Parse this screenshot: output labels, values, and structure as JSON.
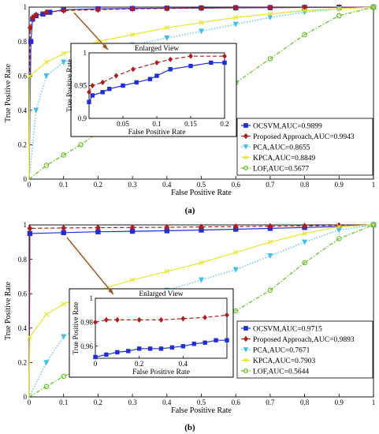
{
  "figure": {
    "label_a": "(a)",
    "label_b": "(b)"
  },
  "chart_data": [
    {
      "type": "line",
      "panel": "(a)",
      "xlabel": "False Positive Rate",
      "ylabel": "True Positive Rate",
      "xlim": [
        0,
        1
      ],
      "ylim": [
        0,
        1
      ],
      "xticks": [
        "0",
        "0.1",
        "0.2",
        "0.3",
        "0.4",
        "0.5",
        "0.6",
        "0.7",
        "0.8",
        "0.9",
        "1"
      ],
      "yticks": [
        "0",
        "0.2",
        "0.4",
        "0.6",
        "0.8",
        "1"
      ],
      "legend_position": "bottom-right",
      "series": [
        {
          "name": "OCSVM,AUC=0.9899",
          "color": "#1f2fd6",
          "marker": "square",
          "dash": "solid",
          "x": [
            0,
            0.005,
            0.01,
            0.02,
            0.04,
            0.06,
            0.1,
            0.2,
            0.3,
            0.4,
            0.5,
            0.6,
            0.7,
            0.8,
            0.9,
            1
          ],
          "y": [
            0,
            0.8,
            0.93,
            0.95,
            0.96,
            0.97,
            0.985,
            0.99,
            0.992,
            0.994,
            0.995,
            0.996,
            0.997,
            0.998,
            0.999,
            1
          ]
        },
        {
          "name": "Proposed Approach,AUC=0.9943",
          "color": "#b01c1c",
          "marker": "diamond",
          "dash": "dashed",
          "x": [
            0,
            0.003,
            0.01,
            0.02,
            0.05,
            0.1,
            0.2,
            0.3,
            0.4,
            0.5,
            0.6,
            0.7,
            0.8,
            0.9,
            1
          ],
          "y": [
            0,
            0.88,
            0.94,
            0.955,
            0.97,
            0.98,
            0.985,
            0.99,
            0.992,
            0.994,
            0.996,
            0.997,
            0.998,
            0.999,
            1
          ]
        },
        {
          "name": "PCA,AUC=0.8655",
          "color": "#3fc0ec",
          "marker": "triangle-down",
          "dash": "dotted",
          "x": [
            0,
            0.02,
            0.05,
            0.1,
            0.2,
            0.3,
            0.4,
            0.5,
            0.6,
            0.7,
            0.8,
            0.9,
            1
          ],
          "y": [
            0,
            0.4,
            0.6,
            0.68,
            0.74,
            0.78,
            0.82,
            0.86,
            0.9,
            0.94,
            0.97,
            0.99,
            1
          ]
        },
        {
          "name": "KPCA,AUC=0.8849",
          "color": "#e6e62a",
          "marker": "x",
          "dash": "solid",
          "x": [
            0,
            0.002,
            0.05,
            0.1,
            0.2,
            0.3,
            0.4,
            0.5,
            0.6,
            0.7,
            0.8,
            0.9,
            1
          ],
          "y": [
            0,
            0.6,
            0.68,
            0.73,
            0.8,
            0.84,
            0.88,
            0.91,
            0.94,
            0.96,
            0.98,
            0.99,
            1
          ]
        },
        {
          "name": "LOF,AUC=0.5677",
          "color": "#5ec21c",
          "marker": "circle",
          "dash": "dashdot",
          "x": [
            0,
            0.05,
            0.1,
            0.15,
            0.2,
            0.3,
            0.4,
            0.5,
            0.55,
            0.6,
            0.7,
            0.8,
            0.9,
            1
          ],
          "y": [
            0,
            0.08,
            0.14,
            0.2,
            0.27,
            0.33,
            0.38,
            0.43,
            0.48,
            0.56,
            0.7,
            0.84,
            0.95,
            1
          ]
        }
      ],
      "inset": {
        "title": "Enlarged View",
        "xlabel": "False Positive Rate",
        "ylabel": "True Positive Rate",
        "xlim": [
          0,
          0.2
        ],
        "ylim": [
          0.9,
          1
        ],
        "xticks": [
          "0.05",
          "0.1",
          "0.15",
          "0.2"
        ],
        "yticks": [
          "0.9",
          "0.95",
          "1"
        ],
        "series": [
          {
            "name": "OCSVM,AUC=0.9899",
            "x": [
              0,
              0.005,
              0.02,
              0.03,
              0.05,
              0.07,
              0.09,
              0.1,
              0.12,
              0.15,
              0.18,
              0.2
            ],
            "y": [
              0.925,
              0.935,
              0.94,
              0.945,
              0.95,
              0.955,
              0.96,
              0.965,
              0.975,
              0.98,
              0.985,
              0.985
            ]
          },
          {
            "name": "Proposed Approach,AUC=0.9943",
            "x": [
              0,
              0.005,
              0.02,
              0.04,
              0.065,
              0.1,
              0.12,
              0.15,
              0.2
            ],
            "y": [
              0.94,
              0.95,
              0.955,
              0.965,
              0.975,
              0.985,
              0.99,
              0.995,
              0.995
            ]
          }
        ]
      }
    },
    {
      "type": "line",
      "panel": "(b)",
      "xlabel": "False Positive Rate",
      "ylabel": "True Positive Rate",
      "xlim": [
        0,
        1
      ],
      "ylim": [
        0,
        1
      ],
      "xticks": [
        "0",
        "0.1",
        "0.2",
        "0.3",
        "0.4",
        "0.5",
        "0.6",
        "0.7",
        "0.8",
        "0.9",
        "1"
      ],
      "yticks": [
        "0",
        "0.2",
        "0.4",
        "0.6",
        "0.8",
        "1"
      ],
      "legend_position": "bottom-right",
      "series": [
        {
          "name": "OCSVM,AUC=0.9715",
          "color": "#1f2fd6",
          "marker": "square",
          "dash": "solid",
          "x": [
            0,
            0.002,
            0.1,
            0.2,
            0.3,
            0.4,
            0.5,
            0.6,
            0.7,
            0.8,
            0.9,
            1
          ],
          "y": [
            0,
            0.95,
            0.955,
            0.96,
            0.963,
            0.966,
            0.97,
            0.975,
            0.98,
            0.985,
            0.99,
            1
          ]
        },
        {
          "name": "Proposed Approach,AUC=0.9893",
          "color": "#b01c1c",
          "marker": "diamond",
          "dash": "dashed",
          "x": [
            0,
            0.002,
            0.1,
            0.2,
            0.3,
            0.4,
            0.5,
            0.6,
            0.7,
            0.8,
            0.9,
            1
          ],
          "y": [
            0,
            0.98,
            0.982,
            0.984,
            0.985,
            0.986,
            0.988,
            0.99,
            0.992,
            0.994,
            0.997,
            1
          ]
        },
        {
          "name": "PCA,AUC=0.7671",
          "color": "#3fc0ec",
          "marker": "triangle-down",
          "dash": "dotted",
          "x": [
            0,
            0.05,
            0.1,
            0.2,
            0.3,
            0.4,
            0.5,
            0.6,
            0.7,
            0.8,
            0.9,
            1
          ],
          "y": [
            0,
            0.2,
            0.35,
            0.48,
            0.56,
            0.62,
            0.68,
            0.74,
            0.82,
            0.9,
            0.97,
            1
          ]
        },
        {
          "name": "KPCA,AUC=0.7903",
          "color": "#e6e62a",
          "marker": "x",
          "dash": "solid",
          "x": [
            0,
            0.002,
            0.05,
            0.1,
            0.2,
            0.3,
            0.4,
            0.5,
            0.6,
            0.7,
            0.8,
            0.9,
            1
          ],
          "y": [
            0,
            0.35,
            0.48,
            0.54,
            0.62,
            0.68,
            0.73,
            0.78,
            0.84,
            0.9,
            0.95,
            0.99,
            1
          ]
        },
        {
          "name": "LOF,AUC=0.5644",
          "color": "#5ec21c",
          "marker": "circle",
          "dash": "dashdot",
          "x": [
            0,
            0.05,
            0.1,
            0.2,
            0.3,
            0.4,
            0.5,
            0.6,
            0.7,
            0.8,
            0.9,
            1
          ],
          "y": [
            0,
            0.06,
            0.12,
            0.2,
            0.26,
            0.34,
            0.4,
            0.5,
            0.62,
            0.78,
            0.92,
            1
          ]
        }
      ],
      "inset": {
        "title": "Enlarged View",
        "xlabel": "False Positive Rate",
        "ylabel": "True Positive Rate",
        "xlim": [
          0,
          0.6
        ],
        "ylim": [
          0.95,
          1
        ],
        "xticks": [
          "0",
          "0.2",
          "0.4"
        ],
        "yticks": [
          "0.96",
          "0.98",
          "1"
        ],
        "series": [
          {
            "name": "OCSVM,AUC=0.9715",
            "x": [
              0,
              0.05,
              0.1,
              0.15,
              0.2,
              0.25,
              0.3,
              0.35,
              0.4,
              0.45,
              0.5,
              0.55,
              0.6
            ],
            "y": [
              0.951,
              0.953,
              0.955,
              0.956,
              0.958,
              0.958,
              0.958,
              0.959,
              0.96,
              0.962,
              0.963,
              0.965,
              0.965
            ]
          },
          {
            "name": "Proposed Approach,AUC=0.9893",
            "x": [
              0,
              0.05,
              0.1,
              0.2,
              0.3,
              0.4,
              0.5,
              0.6
            ],
            "y": [
              0.98,
              0.982,
              0.982,
              0.982,
              0.982,
              0.983,
              0.984,
              0.986
            ]
          }
        ]
      }
    }
  ]
}
